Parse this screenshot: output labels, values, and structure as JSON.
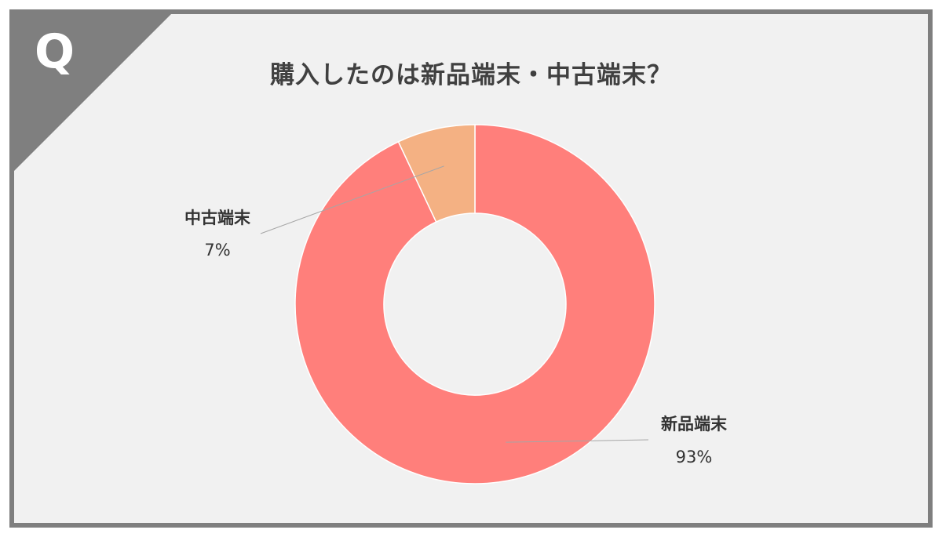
{
  "badge": {
    "letter": "Q"
  },
  "chart_data": {
    "type": "pie",
    "variant": "donut",
    "title": "購入したのは新品端末・中古端末？",
    "slices": [
      {
        "label": "新品端末",
        "value": 93,
        "display": "93%",
        "color": "#ff7f7b"
      },
      {
        "label": "中古端末",
        "value": 7,
        "display": "7%",
        "color": "#f4b183"
      }
    ],
    "label_placement": "outside with leader lines",
    "start_angle_deg": 0,
    "direction": "clockwise",
    "background": "#f1f1f1",
    "frame_color": "#7f7f7f"
  }
}
